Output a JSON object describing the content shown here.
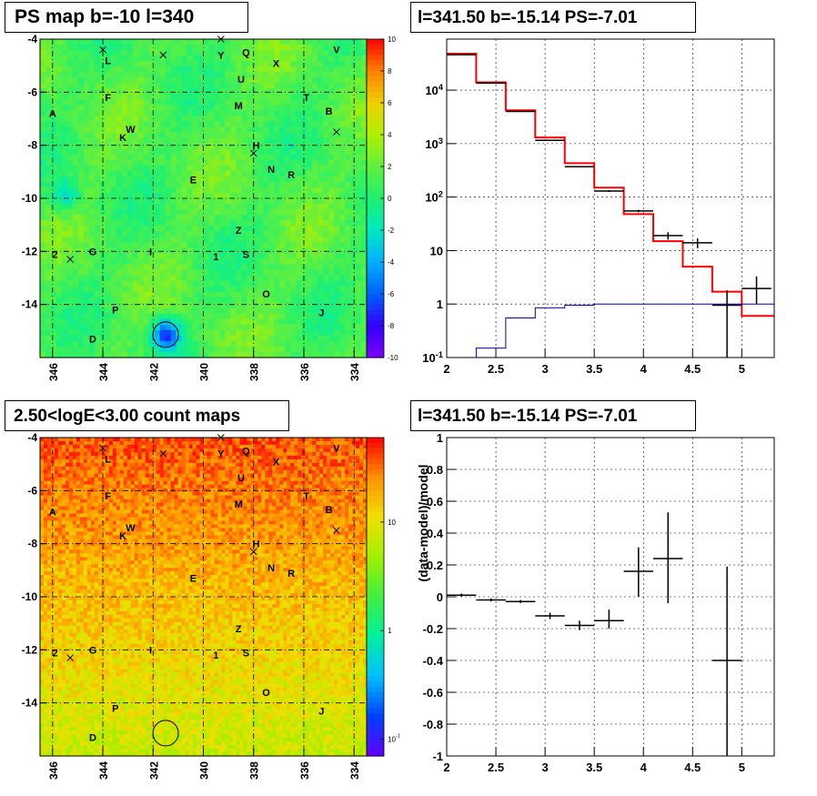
{
  "titles": {
    "tl": "PS map b=-10 l=340",
    "tr": "l=341.50 b=-15.14 PS=-7.01",
    "bl": "2.50<logE<3.00 count maps",
    "br": "l=341.50 b=-15.14 PS=-7.01"
  },
  "colors": {
    "frame": "#000000",
    "grid": "#000000",
    "model": "#ff0000",
    "data": "#000000",
    "background_model": "#0000cc",
    "palette_psmap": [
      "#7c00ff",
      "#3000ff",
      "#0060ff",
      "#00b0ff",
      "#00e8c0",
      "#20f070",
      "#60f040",
      "#b0f000",
      "#f0d000",
      "#ff8000",
      "#ff0000"
    ],
    "palette_counts": [
      "#6000ff",
      "#0040ff",
      "#00c0ff",
      "#00f0a0",
      "#40f040",
      "#a0f000",
      "#f0e000",
      "#ff9000",
      "#ff0000"
    ]
  },
  "sky_labels": [
    {
      "t": "L",
      "l": 343.8,
      "b": -4.8
    },
    {
      "t": "Y",
      "l": 339.3,
      "b": -4.6
    },
    {
      "t": "Q",
      "l": 338.3,
      "b": -4.5
    },
    {
      "t": "X",
      "l": 337.1,
      "b": -4.9
    },
    {
      "t": "V",
      "l": 334.7,
      "b": -4.4
    },
    {
      "t": "U",
      "l": 338.5,
      "b": -5.5
    },
    {
      "t": "F",
      "l": 343.8,
      "b": -6.2
    },
    {
      "t": "M",
      "l": 338.6,
      "b": -6.5
    },
    {
      "t": "T",
      "l": 335.9,
      "b": -6.2
    },
    {
      "t": "A",
      "l": 346.0,
      "b": -6.8
    },
    {
      "t": "B",
      "l": 335.0,
      "b": -6.7
    },
    {
      "t": "W",
      "l": 342.9,
      "b": -7.4
    },
    {
      "t": "K",
      "l": 343.2,
      "b": -7.7
    },
    {
      "t": "H",
      "l": 337.9,
      "b": -8.0
    },
    {
      "t": "N",
      "l": 337.3,
      "b": -8.9
    },
    {
      "t": "R",
      "l": 336.5,
      "b": -9.1
    },
    {
      "t": "E",
      "l": 340.4,
      "b": -9.3
    },
    {
      "t": "Z",
      "l": 338.6,
      "b": -11.2
    },
    {
      "t": "2",
      "l": 345.9,
      "b": -12.1
    },
    {
      "t": "G",
      "l": 344.4,
      "b": -12.0
    },
    {
      "t": "I",
      "l": 342.1,
      "b": -12.0
    },
    {
      "t": "1",
      "l": 339.5,
      "b": -12.2
    },
    {
      "t": "S",
      "l": 338.3,
      "b": -12.1
    },
    {
      "t": "O",
      "l": 337.5,
      "b": -13.6
    },
    {
      "t": "P",
      "l": 343.5,
      "b": -14.2
    },
    {
      "t": "J",
      "l": 335.3,
      "b": -14.3
    },
    {
      "t": "D",
      "l": 344.4,
      "b": -15.3
    }
  ],
  "sky_crosses": [
    {
      "l": 344.0,
      "b": -4.4
    },
    {
      "l": 341.6,
      "b": -4.6
    },
    {
      "l": 339.3,
      "b": -4.0
    },
    {
      "l": 334.7,
      "b": -7.5
    },
    {
      "l": 338.0,
      "b": -8.3
    },
    {
      "l": 345.3,
      "b": -12.3
    }
  ],
  "source_circle": {
    "l": 341.5,
    "b": -15.14
  },
  "chart_data": [
    {
      "type": "heatmap",
      "title": "PS map b=-10 l=340",
      "x_axis": {
        "ticks": [
          "346",
          "344",
          "342",
          "340",
          "338",
          "336",
          "334"
        ],
        "lim": [
          346.5,
          333.5
        ],
        "reversed": true
      },
      "y_axis": {
        "ticks": [
          "-4",
          "-6",
          "-8",
          "-10",
          "-12",
          "-14"
        ],
        "lim": [
          -16.0,
          -4.0
        ]
      },
      "colorbar": {
        "ticks": [
          "10",
          "8",
          "6",
          "4",
          "2",
          "0",
          "-2",
          "-4",
          "-6",
          "-8",
          "-10"
        ],
        "lim": [
          -10,
          10
        ]
      },
      "grid": true,
      "features": [
        {
          "l": 341.5,
          "b": -15.14,
          "value": -7.01,
          "note": "circled deep minimum"
        },
        {
          "l": 345.5,
          "b": -9.9,
          "value": -3.0
        }
      ]
    },
    {
      "type": "line",
      "title": "l=341.50 b=-15.14 PS=-7.01",
      "x_axis": {
        "ticks": [
          "2",
          "2.5",
          "3",
          "3.5",
          "4",
          "4.5",
          "5"
        ],
        "lim": [
          2.0,
          5.33
        ]
      },
      "y_axis": {
        "scale": "log",
        "ticks": [
          "10^{4}",
          "10^{3}",
          "10^{2}",
          "10",
          "1",
          "10^{-1}"
        ],
        "lim": [
          0.1,
          90000
        ]
      },
      "grid": true,
      "series": [
        {
          "style": "step",
          "color": "#ff0000",
          "edges": [
            2.0,
            2.3,
            2.6,
            2.9,
            3.2,
            3.5,
            3.8,
            4.1,
            4.4,
            4.7,
            5.0,
            5.33
          ],
          "values": [
            48000,
            14000,
            4200,
            1300,
            430,
            150,
            48,
            15,
            5,
            1.7,
            0.6
          ]
        },
        {
          "style": "step",
          "color": "#0000cc",
          "edges": [
            2.0,
            2.3,
            2.6,
            2.9,
            3.2,
            3.5,
            3.8,
            4.1,
            4.4,
            4.7,
            5.0,
            5.33
          ],
          "values": [
            0.1,
            0.15,
            0.55,
            0.85,
            0.95,
            1.0,
            1.0,
            1.0,
            1.0,
            1.0,
            1.0
          ]
        },
        {
          "style": "errorbar",
          "color": "#000000",
          "x": [
            2.15,
            2.45,
            2.75,
            3.05,
            3.35,
            3.65,
            3.95,
            4.25,
            4.55,
            4.85,
            5.15
          ],
          "xerr": 0.15,
          "y": [
            46000,
            13500,
            4000,
            1150,
            370,
            130,
            55,
            19,
            14,
            0.95,
            1.95
          ],
          "ylo": [
            45500,
            13300,
            3950,
            1130,
            360,
            125,
            52,
            16,
            11,
            0.1,
            1.0
          ],
          "yhi": [
            46500,
            13700,
            4050,
            1170,
            380,
            135,
            58,
            22,
            17,
            1.8,
            3.3
          ]
        }
      ]
    },
    {
      "type": "heatmap",
      "title": "2.50<logE<3.00 count maps",
      "x_axis": {
        "ticks": [
          "346",
          "344",
          "342",
          "340",
          "338",
          "336",
          "334"
        ],
        "lim": [
          346.5,
          333.5
        ],
        "reversed": true
      },
      "y_axis": {
        "ticks": [
          "-4",
          "-6",
          "-8",
          "-10",
          "-12",
          "-14"
        ],
        "lim": [
          -16.0,
          -4.0
        ]
      },
      "colorbar": {
        "scale": "log",
        "ticks": [
          "10",
          "1",
          "10^{-1}"
        ],
        "lim": [
          0.07,
          60
        ]
      },
      "grid": true,
      "trend": "counts decrease from top (b=-4) to bottom (b=-16)"
    },
    {
      "type": "scatter",
      "title": "l=341.50 b=-15.14 PS=-7.01",
      "x_axis": {
        "ticks": [
          "2",
          "2.5",
          "3",
          "3.5",
          "4",
          "4.5",
          "5"
        ],
        "lim": [
          2.0,
          5.33
        ]
      },
      "y_axis": {
        "label": "(data-model)/model",
        "ticks": [
          "1",
          "0.8",
          "0.6",
          "0.4",
          "0.2",
          "0",
          "-0.2",
          "-0.4",
          "-0.6",
          "-0.8",
          "-1"
        ],
        "lim": [
          -1,
          1
        ]
      },
      "grid": true,
      "series": [
        {
          "style": "errorbar",
          "color": "#000000",
          "x": [
            2.15,
            2.45,
            2.75,
            3.05,
            3.35,
            3.65,
            3.95,
            4.25,
            4.85
          ],
          "xerr": 0.15,
          "y": [
            0.01,
            -0.02,
            -0.03,
            -0.12,
            -0.18,
            -0.15,
            0.16,
            0.24,
            -0.4
          ],
          "ylo": [
            0.0,
            -0.03,
            -0.04,
            -0.14,
            -0.21,
            -0.2,
            0.0,
            -0.04,
            -1.0
          ],
          "yhi": [
            0.02,
            -0.01,
            -0.02,
            -0.1,
            -0.15,
            -0.08,
            0.31,
            0.53,
            0.19
          ]
        }
      ]
    }
  ]
}
